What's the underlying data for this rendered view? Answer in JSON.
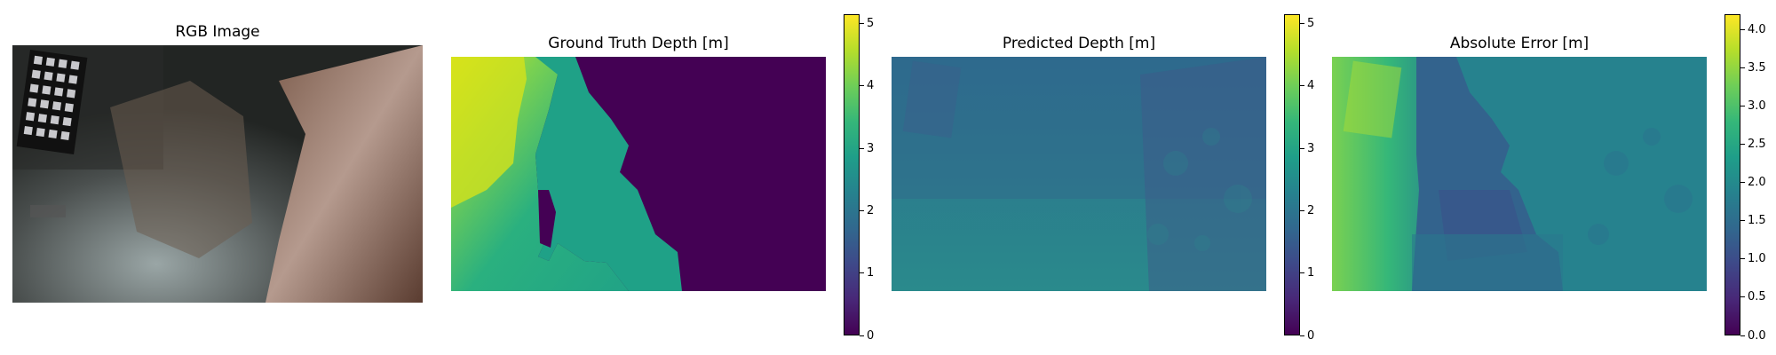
{
  "chart_data": [
    {
      "type": "heatmap",
      "title": "RGB Image",
      "image": "underwater-rgb-photo"
    },
    {
      "type": "heatmap",
      "title": "Ground Truth Depth [m]",
      "colormap": "viridis",
      "clim": [
        0,
        5.15
      ],
      "colorbar_ticks": [
        "0",
        "1",
        "2",
        "3",
        "4",
        "5"
      ]
    },
    {
      "type": "heatmap",
      "title": "Predicted Depth [m]",
      "colormap": "viridis",
      "clim": [
        0,
        5.15
      ],
      "colorbar_ticks": [
        "0",
        "1",
        "2",
        "3",
        "4",
        "5"
      ]
    },
    {
      "type": "heatmap",
      "title": "Absolute Error [m]",
      "colormap": "viridis",
      "clim": [
        0,
        4.2
      ],
      "colorbar_ticks": [
        "0.0",
        "0.5",
        "1.0",
        "1.5",
        "2.0",
        "2.5",
        "3.0",
        "3.5",
        "4.0"
      ]
    }
  ]
}
